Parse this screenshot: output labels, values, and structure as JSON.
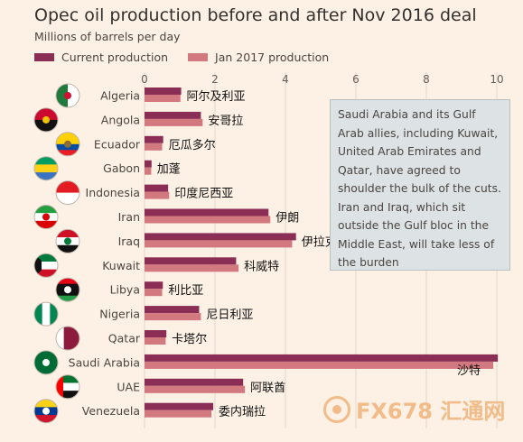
{
  "chart_data": {
    "type": "bar",
    "title": "Opec oil production before and after Nov 2016 deal",
    "subtitle": "Millions of barrels per day",
    "xlim": [
      0,
      10
    ],
    "xticks": [
      "0",
      "2",
      "4",
      "6",
      "8",
      "10"
    ],
    "categories": [
      "Algeria",
      "Angola",
      "Ecuador",
      "Gabon",
      "Indonesia",
      "Iran",
      "Iraq",
      "Kuwait",
      "Libya",
      "Nigeria",
      "Qatar",
      "Saudi Arabia",
      "UAE",
      "Venezuela"
    ],
    "category_labels_cn": [
      "阿尔及利亚",
      "安哥拉",
      "厄瓜多尔",
      "加蓬",
      "印度尼西亚",
      "伊朗",
      "伊拉克",
      "科威特",
      "利比亚",
      "尼日利亚",
      "卡塔尔",
      "沙特",
      "阿联酋",
      "委内瑞拉"
    ],
    "series": [
      {
        "name": "Current production",
        "color": "#8b2e55",
        "values": [
          1.04,
          1.6,
          0.53,
          0.2,
          0.67,
          3.52,
          4.3,
          2.6,
          0.52,
          1.55,
          0.62,
          10.03,
          2.8,
          1.95
        ]
      },
      {
        "name": "Jan 2017 production",
        "color": "#d2787f",
        "values": [
          1.02,
          1.65,
          0.5,
          0.19,
          0.7,
          3.57,
          4.19,
          2.67,
          0.5,
          1.6,
          0.6,
          9.9,
          2.85,
          1.9
        ]
      }
    ],
    "grid": true,
    "legend_position": "top-left",
    "annotation": "Saudi Arabia and its Gulf Arab allies, including Kuwait, United Arab Emirates and Qatar, have agreed to shoulder the bulk of the cuts. Iran and Iraq, which sit outside the Gulf bloc in the Middle East, will take less of the burden"
  },
  "watermark": {
    "text": "FX678 汇通网"
  }
}
